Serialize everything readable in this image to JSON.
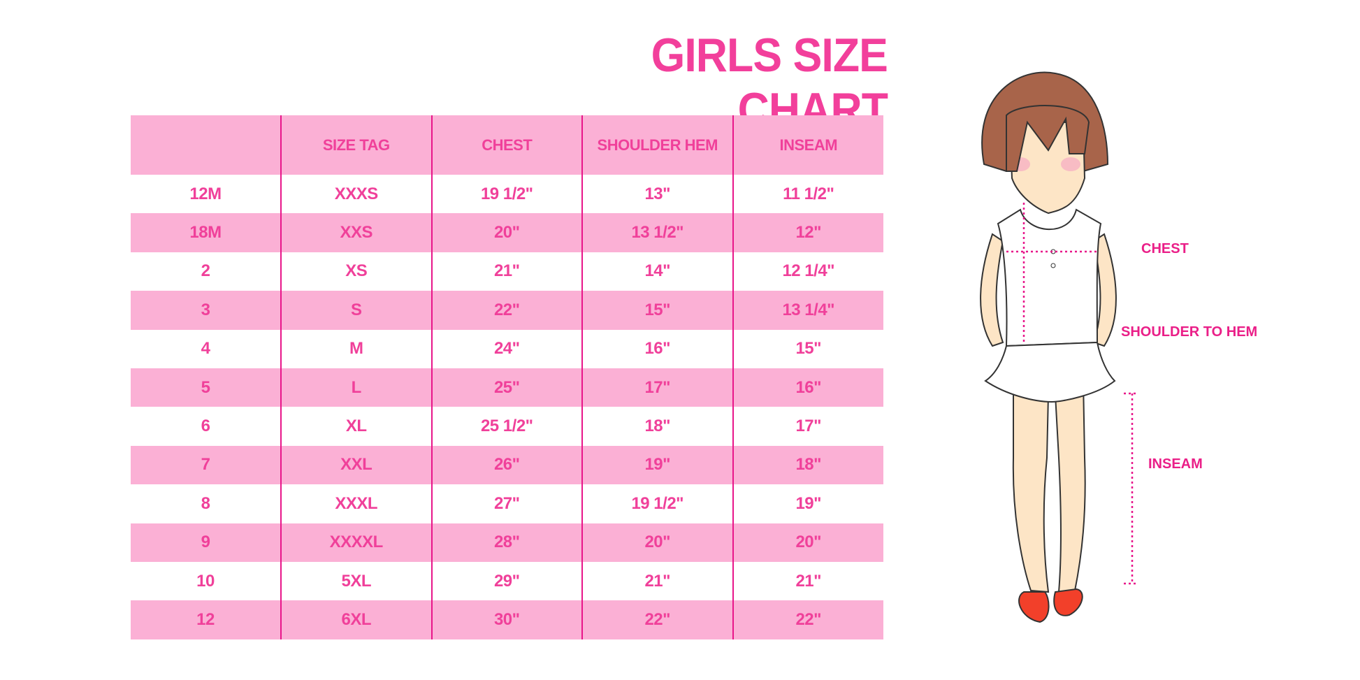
{
  "title": "GIRLS SIZE CHART",
  "table": {
    "headers": [
      "",
      "SIZE TAG",
      "CHEST",
      "SHOULDER HEM",
      "INSEAM"
    ],
    "rows": [
      [
        "12M",
        "XXXS",
        "19 1/2\"",
        "13\"",
        "11 1/2\""
      ],
      [
        "18M",
        "XXS",
        "20\"",
        "13 1/2\"",
        "12\""
      ],
      [
        "2",
        "XS",
        "21\"",
        "14\"",
        "12 1/4\""
      ],
      [
        "3",
        "S",
        "22\"",
        "15\"",
        "13 1/4\""
      ],
      [
        "4",
        "M",
        "24\"",
        "16\"",
        "15\""
      ],
      [
        "5",
        "L",
        "25\"",
        "17\"",
        "16\""
      ],
      [
        "6",
        "XL",
        "25 1/2\"",
        "18\"",
        "17\""
      ],
      [
        "7",
        "XXL",
        "26\"",
        "19\"",
        "18\""
      ],
      [
        "8",
        "XXXL",
        "27\"",
        "19 1/2\"",
        "19\""
      ],
      [
        "9",
        "XXXXL",
        "28\"",
        "20\"",
        "20\""
      ],
      [
        "10",
        "5XL",
        "29\"",
        "21\"",
        "21\""
      ],
      [
        "12",
        "6XL",
        "30\"",
        "22\"",
        "22\""
      ]
    ]
  },
  "figure": {
    "labels": {
      "chest": "CHEST",
      "shoulder_to_hem": "SHOULDER TO HEM",
      "inseam": "INSEAM"
    }
  },
  "colors": {
    "accent": "#f0409a",
    "row_pink": "#fbb0d5",
    "divider": "#e8168a"
  }
}
